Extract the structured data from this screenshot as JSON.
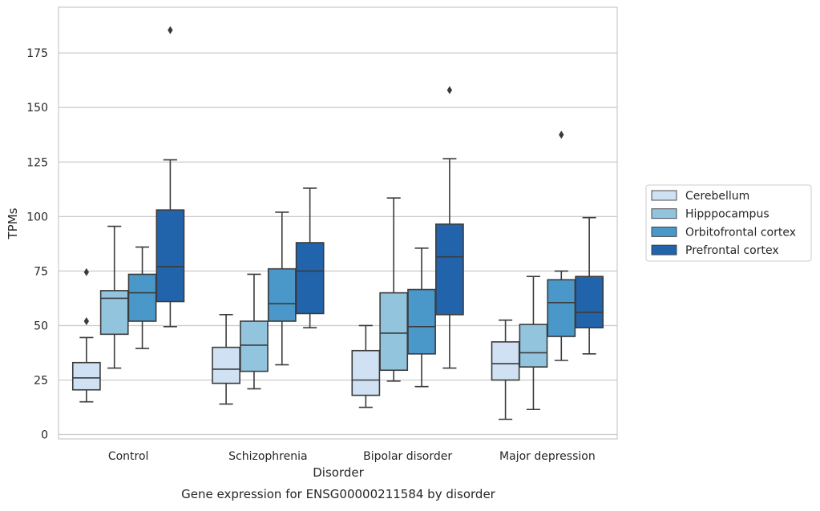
{
  "colors": {
    "background": "#ffffff",
    "grid": "#cccccc",
    "spine": "#cccccc",
    "whisker": "#3b3b3b",
    "Cerebellum": "#cfe1f2",
    "Hipppocampus": "#93c4de",
    "Orbitofrontal cortex": "#4a98c9",
    "Prefrontal cortex": "#2264ab"
  },
  "chart_data": {
    "type": "box",
    "caption": "Gene expression for ENSG00000211584 by disorder",
    "xlabel": "Disorder",
    "ylabel": "TPMs",
    "ylim": [
      -2,
      196
    ],
    "yticks": [
      0,
      25,
      50,
      75,
      100,
      125,
      150,
      175
    ],
    "grid": true,
    "legend_position": "right",
    "categories": [
      "Control",
      "Schizophrenia",
      "Bipolar disorder",
      "Major depression"
    ],
    "series": [
      {
        "name": "Cerebellum",
        "boxes": [
          {
            "whisker_low": 15,
            "q1": 20.5,
            "median": 26,
            "q3": 33,
            "whisker_high": 44.5,
            "outliers": [
              52,
              74.5
            ]
          },
          {
            "whisker_low": 14,
            "q1": 23.5,
            "median": 30,
            "q3": 40,
            "whisker_high": 55,
            "outliers": []
          },
          {
            "whisker_low": 12.5,
            "q1": 18,
            "median": 25,
            "q3": 38.5,
            "whisker_high": 50,
            "outliers": []
          },
          {
            "whisker_low": 7,
            "q1": 25,
            "median": 32.5,
            "q3": 42.5,
            "whisker_high": 52.5,
            "outliers": []
          }
        ]
      },
      {
        "name": "Hipppocampus",
        "boxes": [
          {
            "whisker_low": 30.5,
            "q1": 46,
            "median": 62.5,
            "q3": 66,
            "whisker_high": 95.5,
            "outliers": []
          },
          {
            "whisker_low": 21,
            "q1": 29,
            "median": 41,
            "q3": 52,
            "whisker_high": 73.5,
            "outliers": []
          },
          {
            "whisker_low": 24.5,
            "q1": 29.5,
            "median": 46.5,
            "q3": 65,
            "whisker_high": 108.5,
            "outliers": []
          },
          {
            "whisker_low": 11.5,
            "q1": 31,
            "median": 37.5,
            "q3": 50.5,
            "whisker_high": 72.5,
            "outliers": []
          }
        ]
      },
      {
        "name": "Orbitofrontal cortex",
        "boxes": [
          {
            "whisker_low": 39.5,
            "q1": 52,
            "median": 65,
            "q3": 73.5,
            "whisker_high": 86,
            "outliers": []
          },
          {
            "whisker_low": 32,
            "q1": 52,
            "median": 60,
            "q3": 76,
            "whisker_high": 102,
            "outliers": []
          },
          {
            "whisker_low": 22,
            "q1": 37,
            "median": 49.5,
            "q3": 66.5,
            "whisker_high": 85.5,
            "outliers": []
          },
          {
            "whisker_low": 34,
            "q1": 45,
            "median": 60.5,
            "q3": 71,
            "whisker_high": 75,
            "outliers": [
              137.5
            ]
          }
        ]
      },
      {
        "name": "Prefrontal cortex",
        "boxes": [
          {
            "whisker_low": 49.5,
            "q1": 61,
            "median": 77,
            "q3": 103,
            "whisker_high": 126,
            "outliers": [
              185.5
            ]
          },
          {
            "whisker_low": 49,
            "q1": 55.5,
            "median": 75,
            "q3": 88,
            "whisker_high": 113,
            "outliers": []
          },
          {
            "whisker_low": 30.5,
            "q1": 55,
            "median": 81.5,
            "q3": 96.5,
            "whisker_high": 126.5,
            "outliers": [
              158
            ]
          },
          {
            "whisker_low": 37,
            "q1": 49,
            "median": 56,
            "q3": 72.5,
            "whisker_high": 99.5,
            "outliers": []
          }
        ]
      }
    ]
  }
}
